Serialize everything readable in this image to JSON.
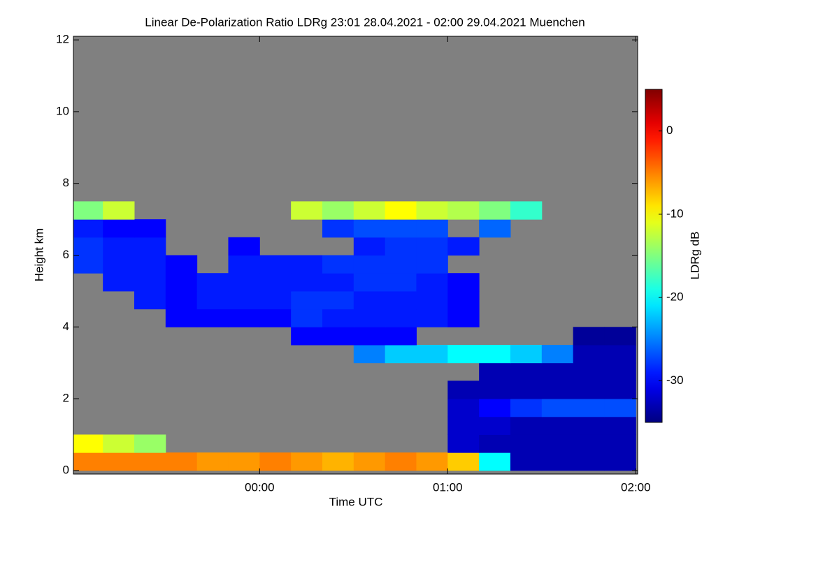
{
  "chart_data": {
    "type": "heatmap",
    "title": "Linear De-Polarization Ratio LDRg   23:01 28.04.2021 - 02:00 29.04.2021 Muenchen",
    "x_label": "Time UTC",
    "y_label": "Height km",
    "colorbar_label": "LDRg dB",
    "xlim": [
      -0.99,
      2.01
    ],
    "xticks": [
      {
        "value": 0,
        "label": "00:00"
      },
      {
        "value": 1,
        "label": "01:00"
      },
      {
        "value": 2,
        "label": "02:00"
      }
    ],
    "ylim": [
      -0.1,
      12.1
    ],
    "yticks": [
      0,
      2,
      4,
      6,
      8,
      10,
      12
    ],
    "clim": [
      -35,
      5
    ],
    "cticks": [
      0,
      -10,
      -20,
      -30
    ],
    "colormap": "jet",
    "missing_color": "#808080",
    "x_bins": [
      -1.0,
      -0.8333,
      -0.6667,
      -0.5,
      -0.3333,
      -0.1667,
      0,
      0.1667,
      0.3333,
      0.5,
      0.6667,
      0.8333,
      1.0,
      1.1667,
      1.3333,
      1.5,
      1.6667,
      1.8333,
      2.0
    ],
    "y_bins": [
      0,
      0.5,
      1,
      1.5,
      2,
      2.5,
      3,
      3.5,
      4,
      4.5,
      5,
      5.5,
      6,
      6.5,
      7,
      7.5
    ],
    "values": [
      [
        -5,
        -5,
        -5,
        -5,
        -6,
        -6,
        -5,
        -6,
        -7,
        -6,
        -5,
        -6,
        -8,
        -20,
        -33,
        -33,
        -33,
        -33
      ],
      [
        -10,
        -12,
        -14,
        null,
        null,
        null,
        null,
        null,
        null,
        null,
        null,
        null,
        -32,
        -33,
        -33,
        -33,
        -33,
        -33
      ],
      [
        null,
        null,
        null,
        null,
        null,
        null,
        null,
        null,
        null,
        null,
        null,
        null,
        -32,
        -32,
        -33,
        -33,
        -33,
        -33
      ],
      [
        null,
        null,
        null,
        null,
        null,
        null,
        null,
        null,
        null,
        null,
        null,
        null,
        -32,
        -30,
        -28,
        -27,
        -27,
        -27
      ],
      [
        null,
        null,
        null,
        null,
        null,
        null,
        null,
        null,
        null,
        null,
        null,
        null,
        -33,
        -33,
        -33,
        -33,
        -33,
        -33
      ],
      [
        null,
        null,
        null,
        null,
        null,
        null,
        null,
        null,
        null,
        null,
        null,
        null,
        null,
        -33,
        -33,
        -33,
        -33,
        -33
      ],
      [
        null,
        null,
        null,
        null,
        null,
        null,
        null,
        null,
        null,
        -25,
        -22,
        -22,
        -20,
        -20,
        -22,
        -25,
        -33,
        -33
      ],
      [
        null,
        null,
        null,
        null,
        null,
        null,
        null,
        -30,
        -30,
        -30,
        -30,
        null,
        null,
        null,
        null,
        null,
        -34,
        -34
      ],
      [
        null,
        null,
        null,
        -30,
        -30,
        -30,
        -30,
        -28,
        -29,
        -29,
        -29,
        -29,
        -30,
        null,
        null,
        null,
        null,
        null
      ],
      [
        null,
        null,
        -29,
        -30,
        -29,
        -29,
        -29,
        -28,
        -28,
        -29,
        -29,
        -29,
        -30,
        null,
        null,
        null,
        null,
        null
      ],
      [
        null,
        -29,
        -29,
        -30,
        -29,
        -29,
        -29,
        -29,
        -29,
        -28,
        -28,
        -29,
        -30,
        null,
        null,
        null,
        null,
        null
      ],
      [
        -28,
        -29,
        -29,
        -30,
        null,
        -29,
        -29,
        -29,
        -28,
        -28,
        -28,
        -28,
        null,
        null,
        null,
        null,
        null,
        null
      ],
      [
        -28,
        -29,
        -29,
        null,
        null,
        -30,
        null,
        null,
        null,
        -29,
        -28,
        -28,
        -29,
        null,
        null,
        null,
        null,
        null
      ],
      [
        -29,
        -30,
        -30,
        null,
        null,
        null,
        null,
        null,
        -28,
        -27,
        -27,
        -27,
        null,
        -26,
        null,
        null,
        null,
        null
      ],
      [
        -15,
        -12,
        null,
        null,
        null,
        null,
        null,
        -12,
        -14,
        -12,
        -10,
        -12,
        -13,
        -15,
        -18,
        null,
        null,
        null
      ]
    ]
  }
}
